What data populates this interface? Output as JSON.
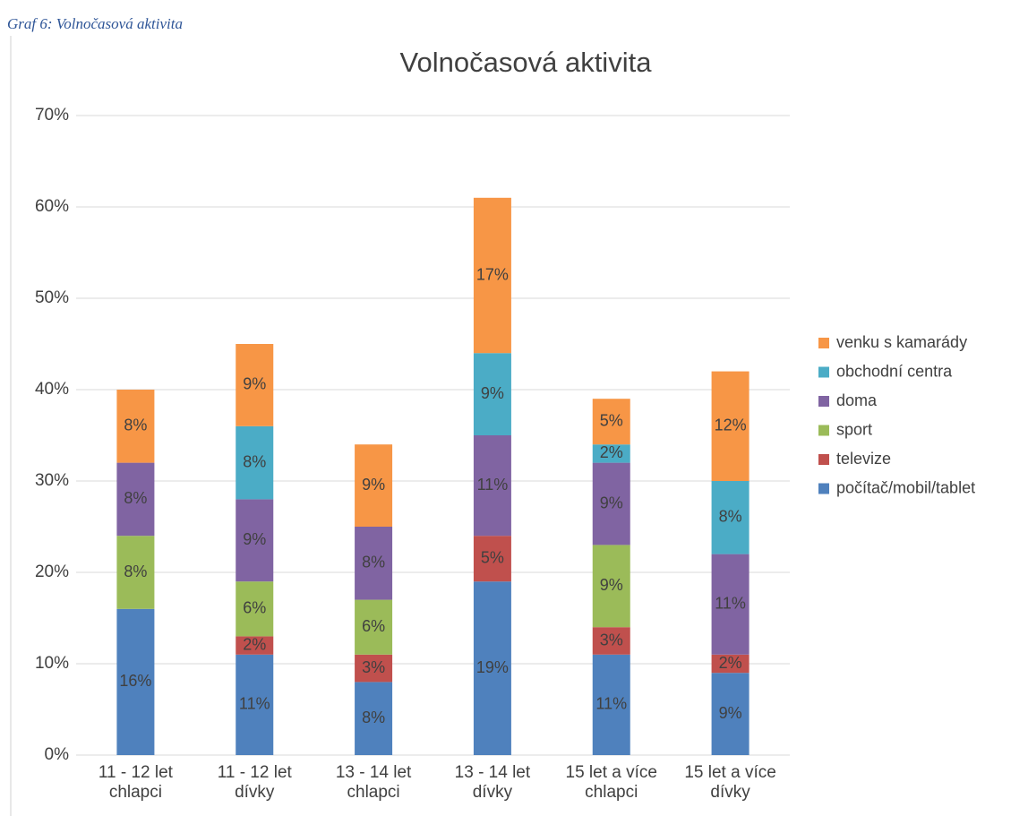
{
  "caption": "Graf 6: Volnočasová aktivita",
  "chart_data": {
    "type": "stacked_bar",
    "title": "Volnočasová aktivita",
    "categories": [
      [
        "11 - 12 let",
        "chlapci"
      ],
      [
        "11 - 12 let",
        "dívky"
      ],
      [
        "13 - 14 let",
        "chlapci"
      ],
      [
        "13 - 14 let",
        "dívky"
      ],
      [
        "15 let a více",
        "chlapci"
      ],
      [
        "15 let a více",
        "dívky"
      ]
    ],
    "series": [
      {
        "name": "počítač/mobil/tablet",
        "color": "#4f81bd",
        "values": [
          16,
          11,
          8,
          19,
          11,
          9
        ],
        "value_labels": [
          "16%",
          "11%",
          "8%",
          "19%",
          "11%",
          "9%"
        ]
      },
      {
        "name": "televize",
        "color": "#c0504d",
        "values": [
          null,
          2,
          3,
          5,
          3,
          2
        ],
        "value_labels": [
          null,
          "2%",
          "3%",
          "5%",
          "3%",
          "2%"
        ]
      },
      {
        "name": "sport",
        "color": "#9bbb59",
        "values": [
          8,
          6,
          6,
          null,
          9,
          null
        ],
        "value_labels": [
          "8%",
          "6%",
          "6%",
          null,
          "9%",
          null
        ]
      },
      {
        "name": "doma",
        "color": "#8064a2",
        "values": [
          8,
          9,
          8,
          11,
          9,
          11
        ],
        "value_labels": [
          "8%",
          "9%",
          "8%",
          "11%",
          "9%",
          "11%"
        ]
      },
      {
        "name": "obchodní centra",
        "color": "#4bacc6",
        "values": [
          null,
          8,
          null,
          9,
          2,
          8
        ],
        "value_labels": [
          null,
          "8%",
          null,
          "9%",
          "2%",
          "8%"
        ]
      },
      {
        "name": "venku s kamarády",
        "color": "#f79646",
        "values": [
          8,
          9,
          9,
          17,
          5,
          12
        ],
        "value_labels": [
          "8%",
          "9%",
          "9%",
          "17%",
          "5%",
          "12%"
        ]
      }
    ],
    "ylim": [
      0,
      70
    ],
    "yticks": [
      {
        "value": 0,
        "label": "0%"
      },
      {
        "value": 10,
        "label": "10%"
      },
      {
        "value": 20,
        "label": "20%"
      },
      {
        "value": 30,
        "label": "30%"
      },
      {
        "value": 40,
        "label": "40%"
      },
      {
        "value": 50,
        "label": "50%"
      },
      {
        "value": 60,
        "label": "60%"
      },
      {
        "value": 70,
        "label": "70%"
      }
    ],
    "grid": true,
    "legend": "right"
  }
}
